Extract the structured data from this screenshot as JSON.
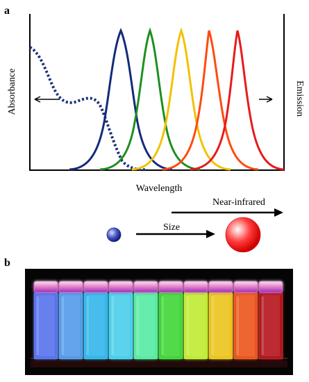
{
  "panel_a": {
    "label": "a",
    "y_left_label": "Absorbance",
    "y_right_label": "Emission",
    "x_label": "Wavelength",
    "near_infrared_label": "Near-infrared",
    "size_label": "Size",
    "absorbance_color": "#1b2f7c",
    "emission_colors": [
      "#142a7a",
      "#1e8f1e",
      "#f2c100",
      "#ff4a10",
      "#e81a1a"
    ]
  },
  "panel_b": {
    "label": "b",
    "vial_colors": [
      "#5f7cff",
      "#5aa7ff",
      "#36c6ff",
      "#4fe0ff",
      "#5dffb0",
      "#45e83a",
      "#cfff35",
      "#ffd51f",
      "#ff5b1b",
      "#c3141f"
    ]
  }
}
